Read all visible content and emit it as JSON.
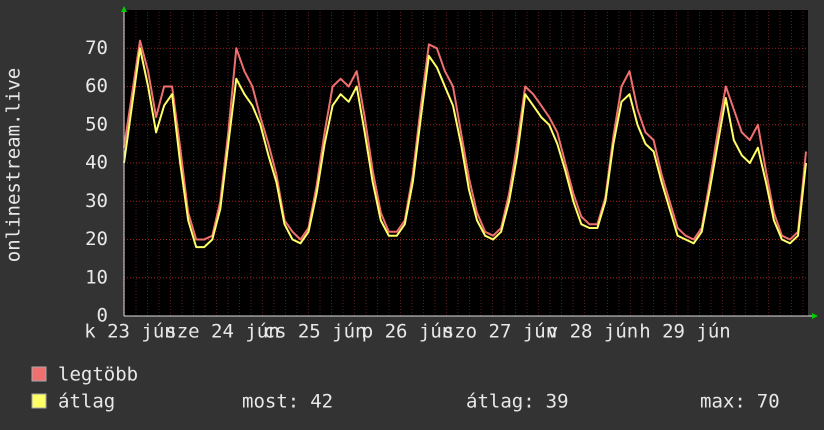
{
  "chart_data": {
    "type": "line",
    "y_label": "onlinestream.live",
    "x_labels": [
      "k 23 jún",
      "sze 24 jún",
      "cs 25 jún",
      "p 26 jún",
      "szo 27 jún",
      "v 28 jún",
      "h 29 jún"
    ],
    "ylim": [
      0,
      80
    ],
    "yticks": [
      0,
      10,
      20,
      30,
      40,
      50,
      60,
      70
    ],
    "grid": true,
    "series": [
      {
        "name": "legtöbb",
        "color": "#f07070",
        "values": [
          44,
          58,
          72,
          64,
          52,
          60,
          60,
          44,
          27,
          20,
          20,
          21,
          30,
          48,
          70,
          64,
          60,
          52,
          45,
          37,
          25,
          22,
          20,
          23,
          34,
          48,
          60,
          62,
          60,
          64,
          52,
          38,
          27,
          22,
          22,
          25,
          37,
          55,
          71,
          70,
          64,
          60,
          48,
          36,
          27,
          22,
          21,
          23,
          32,
          45,
          60,
          58,
          55,
          52,
          48,
          40,
          32,
          26,
          24,
          24,
          31,
          47,
          60,
          64,
          54,
          48,
          46,
          37,
          30,
          23,
          21,
          20,
          23,
          35,
          48,
          60,
          54,
          48,
          46,
          50,
          38,
          27,
          21,
          20,
          22,
          43
        ]
      },
      {
        "name": "átlag",
        "color": "#ffff66",
        "values": [
          40,
          55,
          70,
          60,
          48,
          55,
          58,
          40,
          25,
          18,
          18,
          20,
          28,
          45,
          62,
          58,
          55,
          50,
          42,
          35,
          24,
          20,
          19,
          22,
          32,
          45,
          55,
          58,
          56,
          60,
          48,
          35,
          25,
          21,
          21,
          24,
          35,
          52,
          68,
          65,
          60,
          55,
          45,
          33,
          25,
          21,
          20,
          22,
          30,
          42,
          58,
          55,
          52,
          50,
          45,
          38,
          30,
          24,
          23,
          23,
          30,
          45,
          56,
          58,
          50,
          45,
          43,
          35,
          28,
          21,
          20,
          19,
          22,
          33,
          45,
          57,
          46,
          42,
          40,
          44,
          35,
          25,
          20,
          19,
          21,
          40
        ]
      }
    ],
    "stats": [
      {
        "label": "most:",
        "value": 42
      },
      {
        "label": "átlag:",
        "value": 39
      },
      {
        "label": "max:",
        "value": 70
      }
    ]
  }
}
